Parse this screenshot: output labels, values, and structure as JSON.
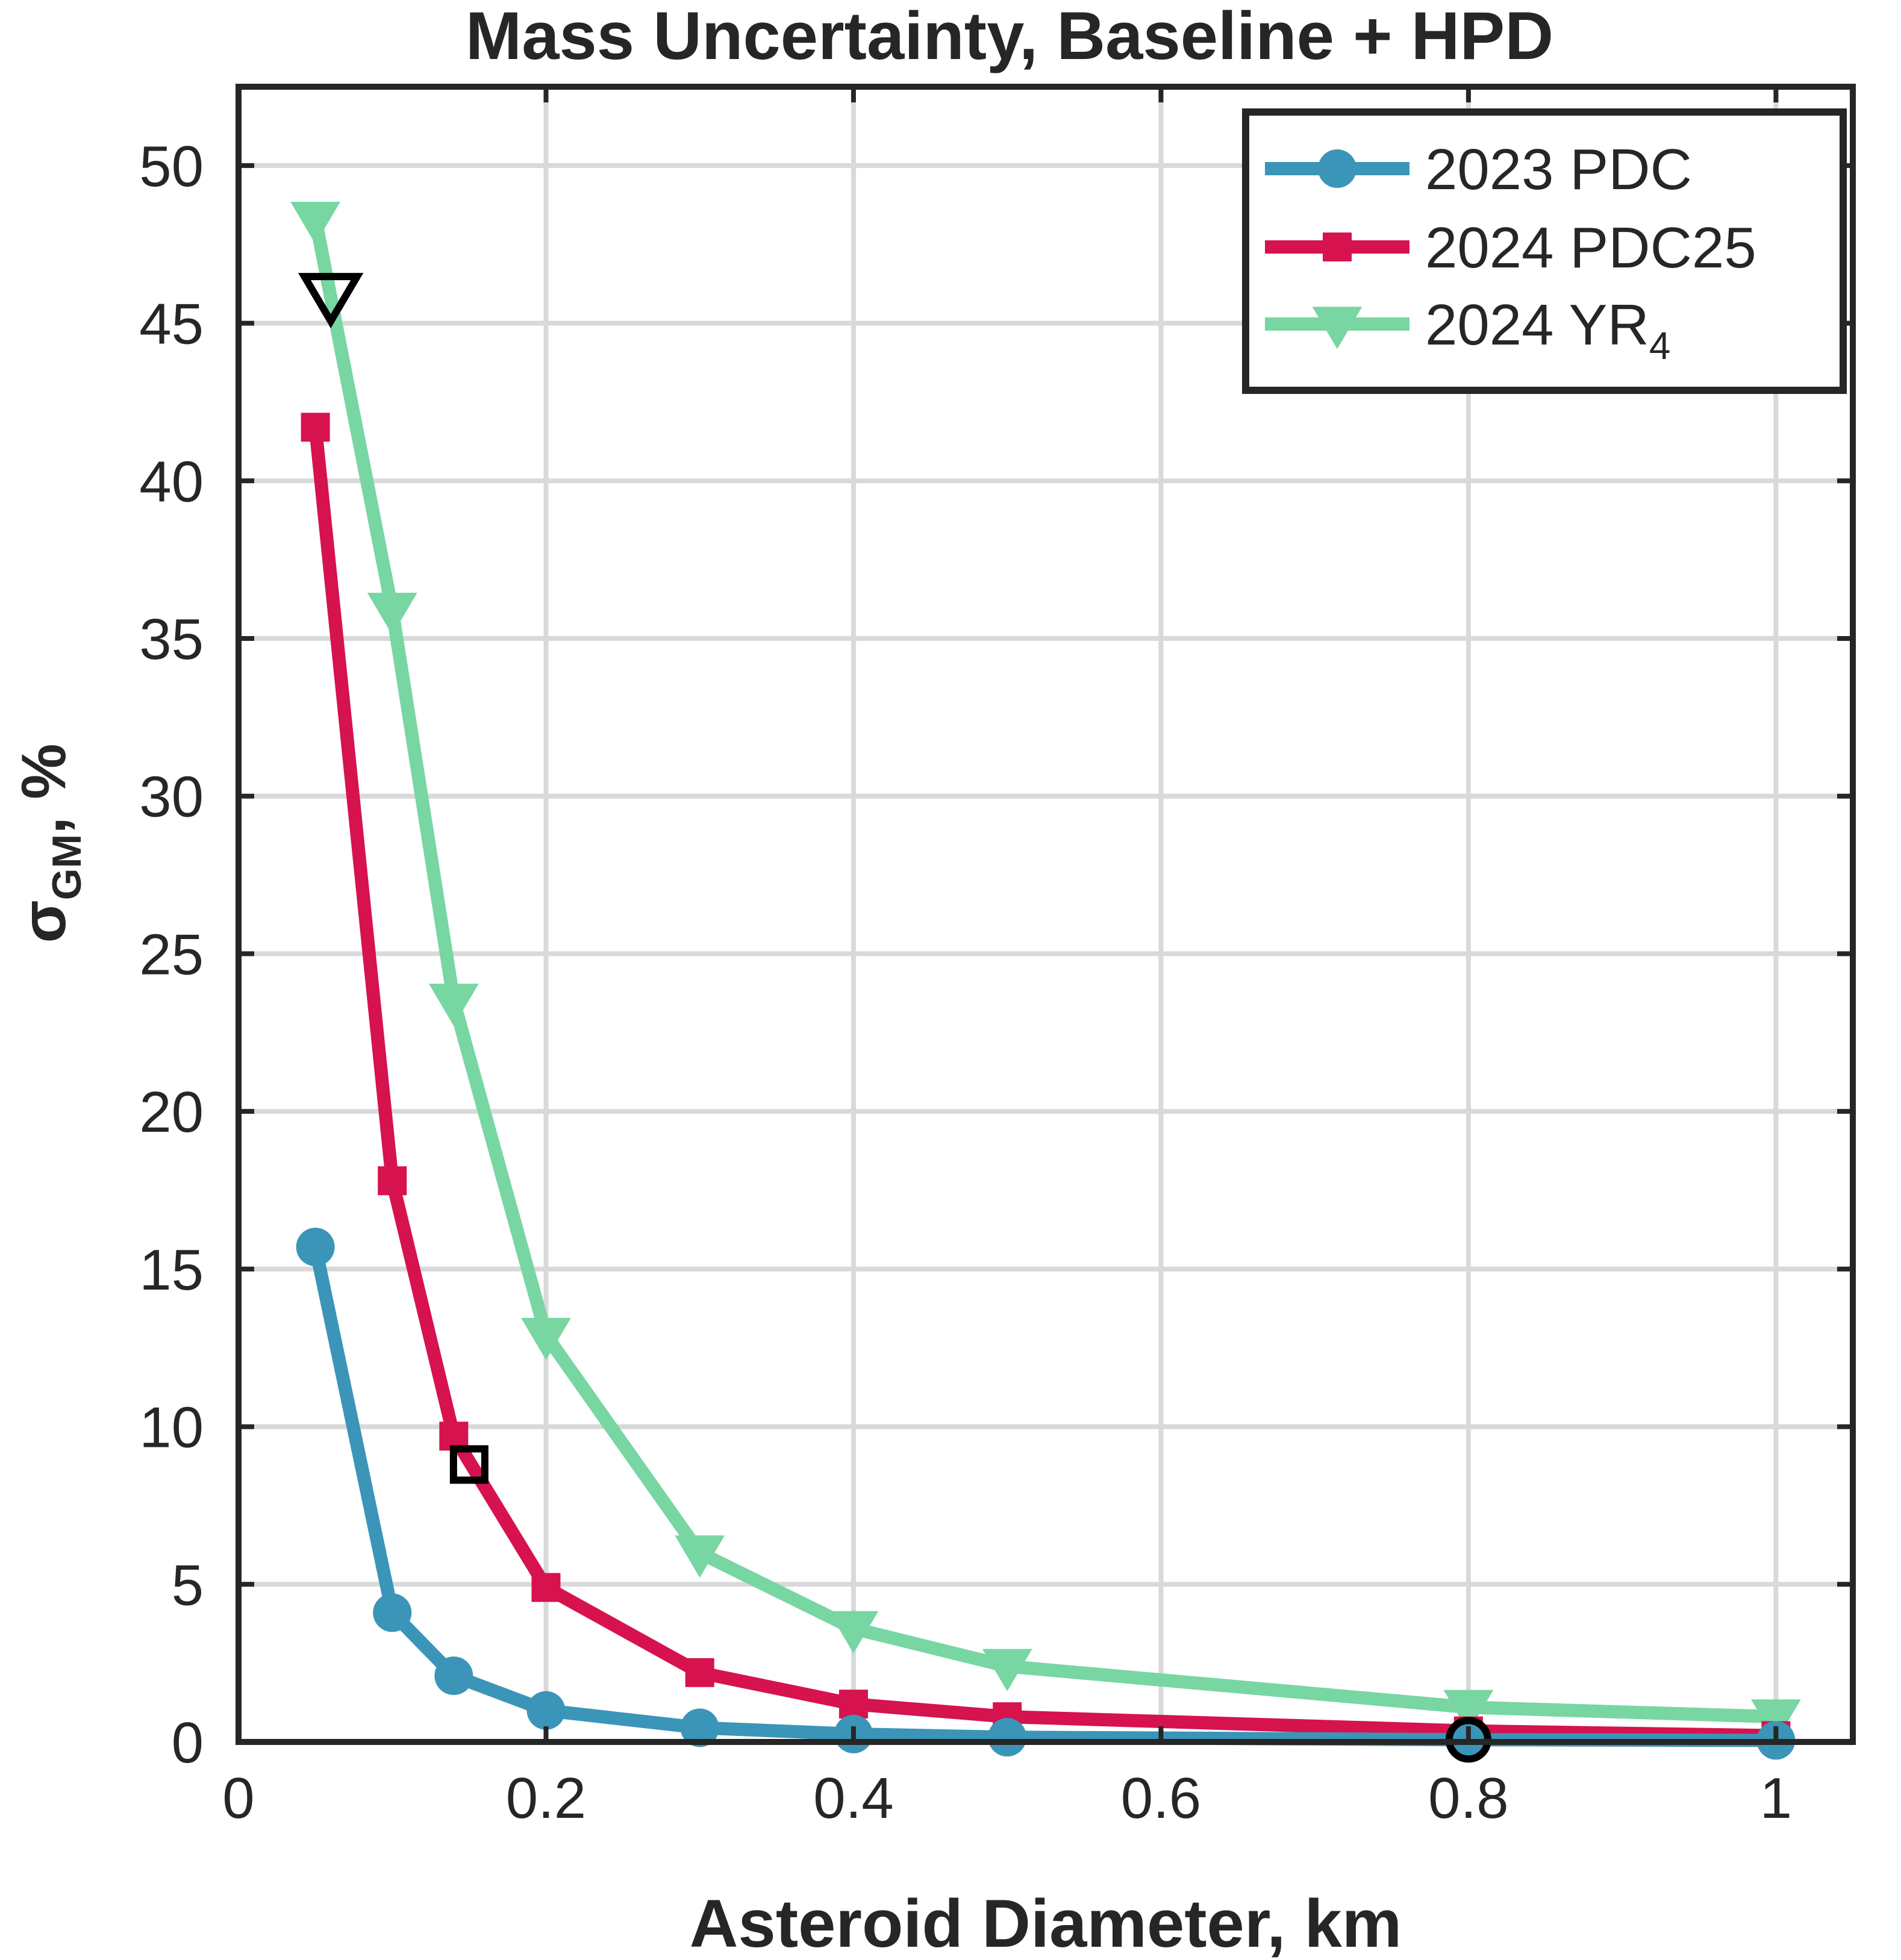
{
  "chart_data": {
    "type": "line",
    "title": "Mass Uncertainty, Baseline + HPD",
    "xlabel": "Asteroid Diameter, km",
    "ylabel": {
      "symbol": "σ",
      "subscript": "GM",
      "unit": ",  %"
    },
    "xlim": [
      0,
      1.05
    ],
    "ylim": [
      0,
      52.5
    ],
    "xticks": [
      0,
      0.2,
      0.4,
      0.6,
      0.8,
      1
    ],
    "xtick_labels": [
      "0",
      "0.2",
      "0.4",
      "0.6",
      "0.8",
      "1"
    ],
    "yticks": [
      0,
      5,
      10,
      15,
      20,
      25,
      30,
      35,
      40,
      45,
      50
    ],
    "ytick_labels": [
      "0",
      "5",
      "10",
      "15",
      "20",
      "25",
      "30",
      "35",
      "40",
      "45",
      "50"
    ],
    "grid": true,
    "legend_position": "top-right",
    "series": [
      {
        "name": "2023 PDC",
        "label_main": "2023 PDC",
        "label_sub": "",
        "color": "#3b95b8",
        "marker": "circle",
        "x": [
          0.05,
          0.1,
          0.14,
          0.2,
          0.3,
          0.4,
          0.5,
          0.8,
          1.0
        ],
        "y": [
          15.7,
          4.1,
          2.1,
          1.0,
          0.45,
          0.25,
          0.15,
          0.07,
          0.05
        ],
        "highlight": {
          "x": 0.8,
          "y": 0.07,
          "marker": "circle"
        }
      },
      {
        "name": "2024 PDC25",
        "label_main": "2024 PDC25",
        "label_sub": "",
        "color": "#d6124f",
        "marker": "square",
        "x": [
          0.05,
          0.1,
          0.14,
          0.2,
          0.3,
          0.4,
          0.5,
          0.8,
          1.0
        ],
        "y": [
          41.7,
          17.8,
          9.7,
          4.9,
          2.2,
          1.2,
          0.8,
          0.35,
          0.2
        ],
        "highlight": {
          "x": 0.15,
          "y": 8.8,
          "marker": "square"
        }
      },
      {
        "name": "2024 YR4",
        "label_main": "2024  YR",
        "label_sub": "4",
        "color": "#78d6a2",
        "marker": "triangle-down",
        "x": [
          0.05,
          0.1,
          0.14,
          0.2,
          0.3,
          0.4,
          0.5,
          0.8,
          1.0
        ],
        "y": [
          48.3,
          35.9,
          23.5,
          12.9,
          6.0,
          3.6,
          2.4,
          1.1,
          0.8
        ],
        "highlight": {
          "x": 0.06,
          "y": 45.9,
          "marker": "triangle-down"
        }
      }
    ]
  }
}
